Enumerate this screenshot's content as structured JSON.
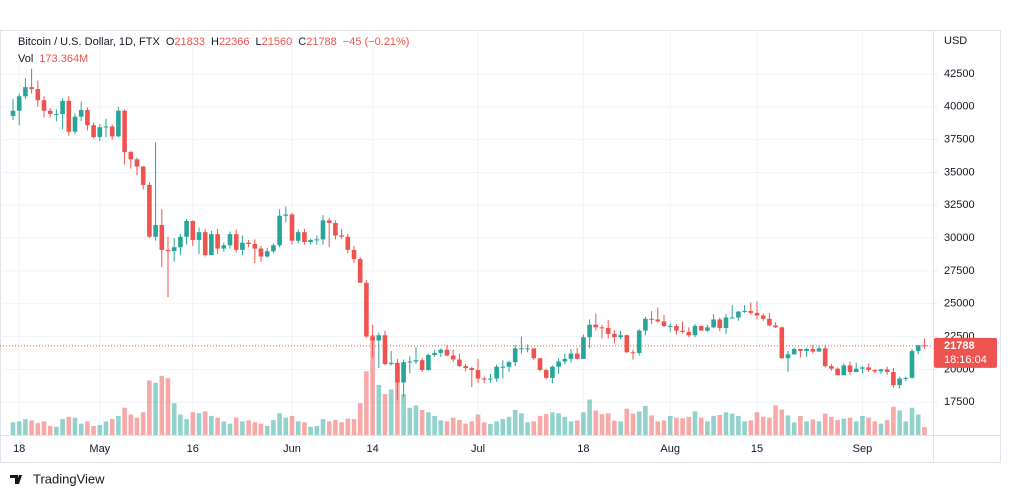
{
  "chart_data": {
    "type": "candlestick",
    "title": "Bitcoin / U.S. Dollar, 1D, FTX",
    "ohlc_labels": [
      "O",
      "H",
      "L",
      "C"
    ],
    "change": "−45 (−0.21%)",
    "volume_name": "Vol",
    "volume_last_label": "173.364M",
    "currency": "USD",
    "countdown": "18:16:04",
    "brand": "TradingView",
    "up_color": "#26a69a",
    "down_color": "#ef5350",
    "grid": true,
    "ylim": [
      15000,
      45850
    ],
    "yticks": [
      17500,
      20000,
      22500,
      25000,
      27500,
      30000,
      32500,
      35000,
      37500,
      40000,
      42500
    ],
    "categories": [
      null,
      "18",
      null,
      null,
      null,
      null,
      null,
      null,
      null,
      null,
      null,
      null,
      null,
      null,
      "May",
      null,
      null,
      null,
      null,
      null,
      null,
      null,
      null,
      null,
      null,
      null,
      null,
      null,
      null,
      "16",
      null,
      null,
      null,
      null,
      null,
      null,
      null,
      null,
      null,
      null,
      null,
      null,
      null,
      null,
      null,
      "Jun",
      null,
      null,
      null,
      null,
      null,
      null,
      null,
      null,
      null,
      null,
      null,
      null,
      "14",
      null,
      null,
      null,
      null,
      null,
      null,
      null,
      null,
      null,
      null,
      null,
      null,
      null,
      null,
      null,
      null,
      "Jul",
      null,
      null,
      null,
      null,
      null,
      null,
      null,
      null,
      null,
      null,
      null,
      null,
      null,
      null,
      null,
      null,
      "18",
      null,
      null,
      null,
      null,
      null,
      null,
      null,
      null,
      null,
      null,
      null,
      null,
      null,
      "Aug",
      null,
      null,
      null,
      null,
      null,
      null,
      null,
      null,
      null,
      null,
      null,
      null,
      null,
      "15",
      null,
      null,
      null,
      null,
      null,
      null,
      null,
      null,
      null,
      null,
      null,
      null,
      null,
      null,
      null,
      null,
      "Sep",
      null,
      null,
      null,
      null,
      null,
      null,
      null,
      null,
      null,
      null
    ],
    "open": [
      39300,
      39700,
      40800,
      41500,
      41350,
      40500,
      39700,
      39450,
      39450,
      40450,
      38100,
      39250,
      39750,
      38600,
      37700,
      38450,
      38500,
      37750,
      39700,
      36550,
      36000,
      35450,
      34050,
      30100,
      31000,
      29100,
      29000,
      29300,
      30100,
      31300,
      29850,
      30450,
      28700,
      30300,
      29200,
      29450,
      30300,
      29100,
      29650,
      29550,
      29200,
      28600,
      29000,
      29450,
      31700,
      31800,
      29800,
      30450,
      29700,
      29850,
      29900,
      31350,
      31150,
      30200,
      30100,
      29100,
      28400,
      26600,
      22500,
      22200,
      22600,
      20400,
      20500,
      19000,
      20550,
      20600,
      20700,
      19950,
      21100,
      21250,
      21500,
      21050,
      20750,
      20250,
      20100,
      19950,
      19300,
      19250,
      19300,
      20200,
      20200,
      20550,
      21600,
      21600,
      21600,
      20850,
      19950,
      19350,
      20200,
      20600,
      20800,
      21200,
      20800,
      22450,
      23400,
      23200,
      23150,
      22700,
      22450,
      22600,
      21300,
      21250,
      22950,
      23850,
      23800,
      23650,
      23300,
      23300,
      22950,
      22850,
      22600,
      23300,
      22950,
      23200,
      23800,
      23150,
      23950,
      23950,
      24400,
      24450,
      24300,
      24100,
      23850,
      23350,
      23200,
      20850,
      21150,
      21550,
      21400,
      21550,
      21350,
      21600,
      20250,
      20050,
      19550,
      20300,
      19800,
      20050,
      20150,
      19950,
      19850,
      20000,
      19800,
      18800,
      19300,
      19350,
      21400,
      21833
    ],
    "high": [
      40600,
      41000,
      42200,
      42900,
      42000,
      40800,
      39900,
      39800,
      40650,
      40800,
      39500,
      40400,
      39950,
      38800,
      38700,
      39100,
      38650,
      40000,
      39800,
      36650,
      36150,
      35500,
      34250,
      37300,
      32200,
      30100,
      30000,
      30300,
      31450,
      31350,
      30800,
      30700,
      30550,
      30700,
      29650,
      30500,
      30650,
      30200,
      29850,
      29900,
      29400,
      29250,
      29600,
      32200,
      32400,
      31900,
      30650,
      30700,
      29950,
      30200,
      31750,
      31550,
      31350,
      30700,
      30300,
      29400,
      28550,
      26800,
      23400,
      22800,
      22950,
      21400,
      20800,
      20750,
      21000,
      21700,
      20850,
      21200,
      21500,
      21600,
      21850,
      21500,
      21200,
      20400,
      20200,
      20800,
      19450,
      19650,
      20350,
      20700,
      20650,
      21850,
      22500,
      21900,
      21600,
      20850,
      20050,
      20300,
      20850,
      21200,
      21550,
      21650,
      22650,
      23800,
      24250,
      23400,
      23750,
      23000,
      22950,
      22650,
      21500,
      23050,
      24000,
      24450,
      24700,
      24150,
      23500,
      23450,
      23650,
      23200,
      23450,
      23350,
      23400,
      24200,
      23950,
      24200,
      24900,
      24450,
      24900,
      25100,
      25200,
      24250,
      24300,
      23600,
      23250,
      21400,
      21650,
      21550,
      21650,
      21850,
      21800,
      21850,
      20400,
      20150,
      20450,
      20600,
      20500,
      20250,
      20450,
      20000,
      20050,
      20200,
      20100,
      19450,
      19450,
      21550,
      21850,
      22366
    ],
    "low": [
      39000,
      38600,
      40600,
      41000,
      40000,
      39200,
      39200,
      38900,
      38300,
      37800,
      37900,
      38900,
      38200,
      37600,
      37400,
      37700,
      37500,
      37700,
      35600,
      35300,
      34800,
      33700,
      30000,
      29800,
      27800,
      25500,
      28200,
      28700,
      29500,
      29400,
      28800,
      28600,
      28700,
      28800,
      28950,
      29200,
      28900,
      28700,
      29300,
      28100,
      28200,
      28500,
      28850,
      29300,
      31200,
      29500,
      29600,
      29500,
      29500,
      29500,
      29500,
      29300,
      29900,
      29950,
      28850,
      28100,
      26600,
      22400,
      20900,
      20100,
      20300,
      20300,
      17700,
      17900,
      19700,
      20400,
      19800,
      19900,
      20950,
      20950,
      21000,
      20550,
      20200,
      19850,
      18650,
      18950,
      18950,
      19000,
      19050,
      19300,
      19800,
      20250,
      21200,
      21300,
      20700,
      19850,
      19250,
      18950,
      19650,
      20400,
      20500,
      20750,
      20800,
      21600,
      22950,
      22350,
      22350,
      21950,
      22300,
      21250,
      20750,
      21050,
      22600,
      23450,
      23550,
      23200,
      22850,
      22650,
      22700,
      22450,
      22450,
      22950,
      22850,
      23150,
      22900,
      22700,
      23900,
      23700,
      24300,
      24150,
      23800,
      23700,
      23250,
      23150,
      20800,
      19800,
      21100,
      20900,
      20950,
      21200,
      21350,
      20150,
      19900,
      19550,
      19550,
      19550,
      19800,
      19700,
      19800,
      19700,
      19650,
      19600,
      18600,
      18550,
      19100,
      19300,
      21150,
      21560
    ],
    "close": [
      39700,
      40800,
      41500,
      41350,
      40500,
      39700,
      39450,
      39450,
      40450,
      38100,
      39250,
      39750,
      38600,
      37700,
      38450,
      38500,
      37750,
      39700,
      36550,
      36000,
      35450,
      34050,
      30100,
      31000,
      29100,
      29000,
      29300,
      30100,
      31300,
      29850,
      30450,
      28700,
      30300,
      29200,
      29450,
      30300,
      29100,
      29650,
      29550,
      29200,
      28600,
      29000,
      29450,
      31700,
      31800,
      29800,
      30450,
      29700,
      29850,
      29900,
      31350,
      31150,
      30200,
      30100,
      29100,
      28400,
      26600,
      22500,
      22200,
      22600,
      20400,
      20500,
      19000,
      20550,
      20600,
      20700,
      19950,
      21100,
      21250,
      21500,
      21050,
      20750,
      20250,
      20100,
      19950,
      19300,
      19250,
      19300,
      20200,
      20200,
      20550,
      21600,
      21600,
      21600,
      20850,
      19950,
      19350,
      20200,
      20600,
      20800,
      21200,
      20800,
      22450,
      23400,
      23200,
      23150,
      22700,
      22450,
      22600,
      21300,
      21250,
      22950,
      23850,
      23800,
      23650,
      23300,
      23300,
      22950,
      22850,
      22600,
      23300,
      22950,
      23200,
      23800,
      23150,
      23950,
      23950,
      24400,
      24450,
      24300,
      24100,
      23850,
      23350,
      23200,
      20850,
      21150,
      21550,
      21400,
      21550,
      21350,
      21600,
      20250,
      20050,
      19550,
      20300,
      19800,
      20050,
      20150,
      19950,
      19850,
      20000,
      19800,
      18800,
      19300,
      19350,
      21400,
      21833,
      21788
    ],
    "volume": [
      280,
      300,
      350,
      320,
      260,
      300,
      200,
      180,
      350,
      400,
      380,
      250,
      300,
      200,
      220,
      300,
      350,
      420,
      600,
      450,
      380,
      500,
      1200,
      1150,
      1300,
      1250,
      700,
      450,
      350,
      500,
      480,
      520,
      420,
      380,
      300,
      250,
      380,
      300,
      320,
      280,
      250,
      200,
      330,
      480,
      380,
      420,
      300,
      280,
      180,
      200,
      350,
      300,
      330,
      280,
      360,
      350,
      700,
      1400,
      2200,
      1100,
      900,
      1000,
      1500,
      900,
      600,
      650,
      550,
      500,
      420,
      320,
      300,
      380,
      330,
      250,
      300,
      450,
      280,
      240,
      300,
      350,
      400,
      550,
      480,
      280,
      300,
      420,
      460,
      500,
      480,
      400,
      300,
      320,
      500,
      780,
      540,
      460,
      480,
      320,
      300,
      580,
      470,
      520,
      640,
      430,
      300,
      320,
      420,
      380,
      370,
      400,
      520,
      380,
      300,
      420,
      440,
      500,
      470,
      420,
      300,
      320,
      500,
      400,
      380,
      650,
      560,
      430,
      280,
      420,
      300,
      340,
      300,
      470,
      400,
      330,
      360,
      380,
      300,
      420,
      380,
      300,
      250,
      330,
      620,
      540,
      300,
      600,
      450,
      173.364
    ]
  }
}
